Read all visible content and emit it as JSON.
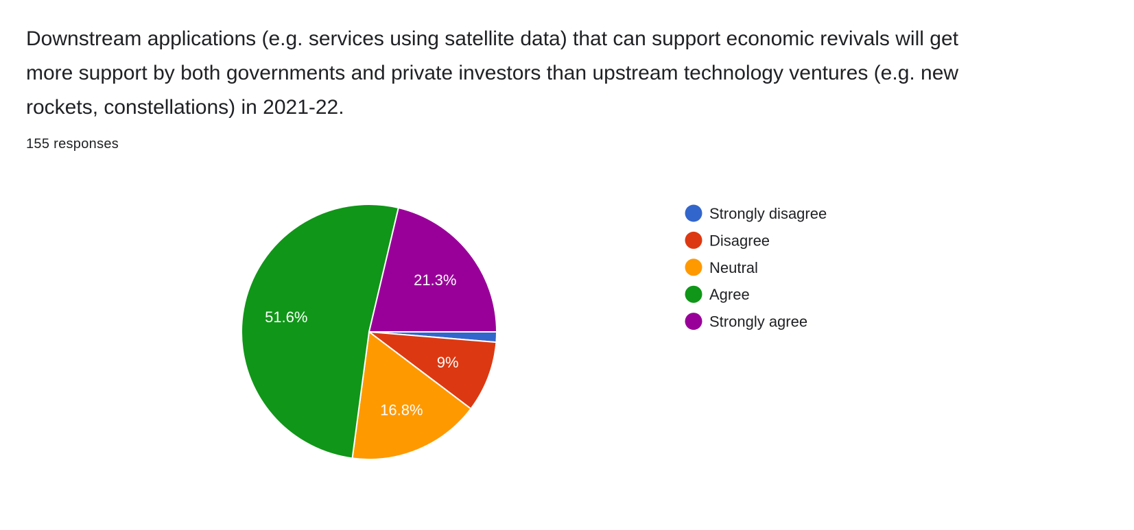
{
  "question": {
    "title": "Downstream applications (e.g. services using satellite data) that can support economic revivals will get more support by both governments and private investors than upstream technology ventures (e.g. new rockets, constellations) in 2021-22.",
    "responses": "155 responses"
  },
  "chart_data": {
    "type": "pie",
    "categories": [
      "Strongly disagree",
      "Disagree",
      "Neutral",
      "Agree",
      "Strongly agree"
    ],
    "values": [
      1.3,
      9.0,
      16.8,
      51.6,
      21.3
    ],
    "data_labels": [
      "",
      "9%",
      "16.8%",
      "51.6%",
      "21.3%"
    ],
    "colors": [
      "#3366cc",
      "#dc3912",
      "#ff9900",
      "#109618",
      "#990099"
    ],
    "legend_position": "right"
  }
}
